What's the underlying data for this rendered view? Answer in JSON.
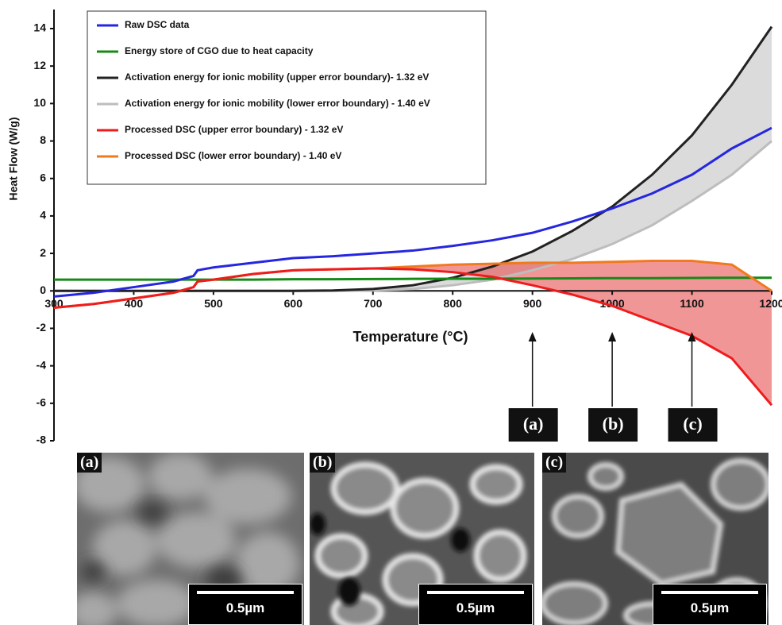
{
  "chart_data": {
    "type": "line",
    "xlabel": "Temperature (°C)",
    "ylabel": "Heat Flow (W/g)",
    "x": [
      300,
      350,
      400,
      450,
      475,
      480,
      500,
      550,
      600,
      650,
      700,
      750,
      800,
      850,
      900,
      950,
      1000,
      1050,
      1100,
      1150,
      1200
    ],
    "series": [
      {
        "name": "Raw DSC data",
        "color": "#2626e0",
        "values": [
          -0.3,
          -0.1,
          0.2,
          0.5,
          0.8,
          1.1,
          1.25,
          1.5,
          1.75,
          1.85,
          2.0,
          2.15,
          2.4,
          2.7,
          3.1,
          3.7,
          4.4,
          5.2,
          6.2,
          7.6,
          8.7
        ]
      },
      {
        "name": "Energy store of CGO due to heat capacity",
        "color": "#168a16",
        "values": [
          0.6,
          0.6,
          0.6,
          0.6,
          0.6,
          0.6,
          0.6,
          0.6,
          0.62,
          0.62,
          0.63,
          0.64,
          0.65,
          0.65,
          0.66,
          0.67,
          0.68,
          0.68,
          0.69,
          0.7,
          0.7
        ]
      },
      {
        "name": "Activation energy for ionic mobility (upper error boundary)- 1.32 eV",
        "color": "#222222",
        "values": [
          0,
          0,
          0,
          0,
          0,
          0,
          0,
          0,
          0,
          0.02,
          0.1,
          0.3,
          0.7,
          1.3,
          2.1,
          3.2,
          4.5,
          6.2,
          8.3,
          11.0,
          14.1
        ]
      },
      {
        "name": "Activation energy for ionic mobility (lower error boundary) - 1.40 eV",
        "color": "#bdbdbd",
        "values": [
          0,
          0,
          0,
          0,
          0,
          0,
          0,
          0,
          0,
          0,
          0.02,
          0.1,
          0.3,
          0.6,
          1.1,
          1.7,
          2.5,
          3.5,
          4.8,
          6.2,
          8.0
        ]
      },
      {
        "name": "Processed DSC (upper error boundary) - 1.32 eV",
        "color": "#ee1c1c",
        "values": [
          -0.9,
          -0.7,
          -0.4,
          -0.1,
          0.2,
          0.5,
          0.6,
          0.9,
          1.1,
          1.15,
          1.2,
          1.15,
          1.0,
          0.75,
          0.3,
          -0.2,
          -0.8,
          -1.6,
          -2.4,
          -3.6,
          -6.1
        ]
      },
      {
        "name": "Processed DSC (lower error boundary) - 1.40 eV",
        "color": "#f07a1e",
        "values": [
          -0.9,
          -0.7,
          -0.4,
          -0.1,
          0.2,
          0.5,
          0.6,
          0.9,
          1.1,
          1.15,
          1.2,
          1.3,
          1.4,
          1.45,
          1.5,
          1.5,
          1.55,
          1.6,
          1.6,
          1.4,
          0.0
        ]
      }
    ],
    "xlim": [
      300,
      1200
    ],
    "xticks": [
      300,
      400,
      500,
      600,
      700,
      800,
      900,
      1000,
      1100,
      1200
    ],
    "ylim": [
      -8,
      14
    ],
    "yticks": [
      -8,
      -6,
      -4,
      -2,
      0,
      2,
      4,
      6,
      8,
      10,
      12,
      14
    ],
    "legend": "upper-left",
    "annotations": [
      {
        "label": "(a)",
        "x": 900
      },
      {
        "label": "(b)",
        "x": 1000
      },
      {
        "label": "(c)",
        "x": 1100
      }
    ]
  },
  "images": [
    {
      "label": "(a)",
      "scale_bar": "0.5µm"
    },
    {
      "label": "(b)",
      "scale_bar": "0.5µm"
    },
    {
      "label": "(c)",
      "scale_bar": "0.5µm"
    }
  ]
}
